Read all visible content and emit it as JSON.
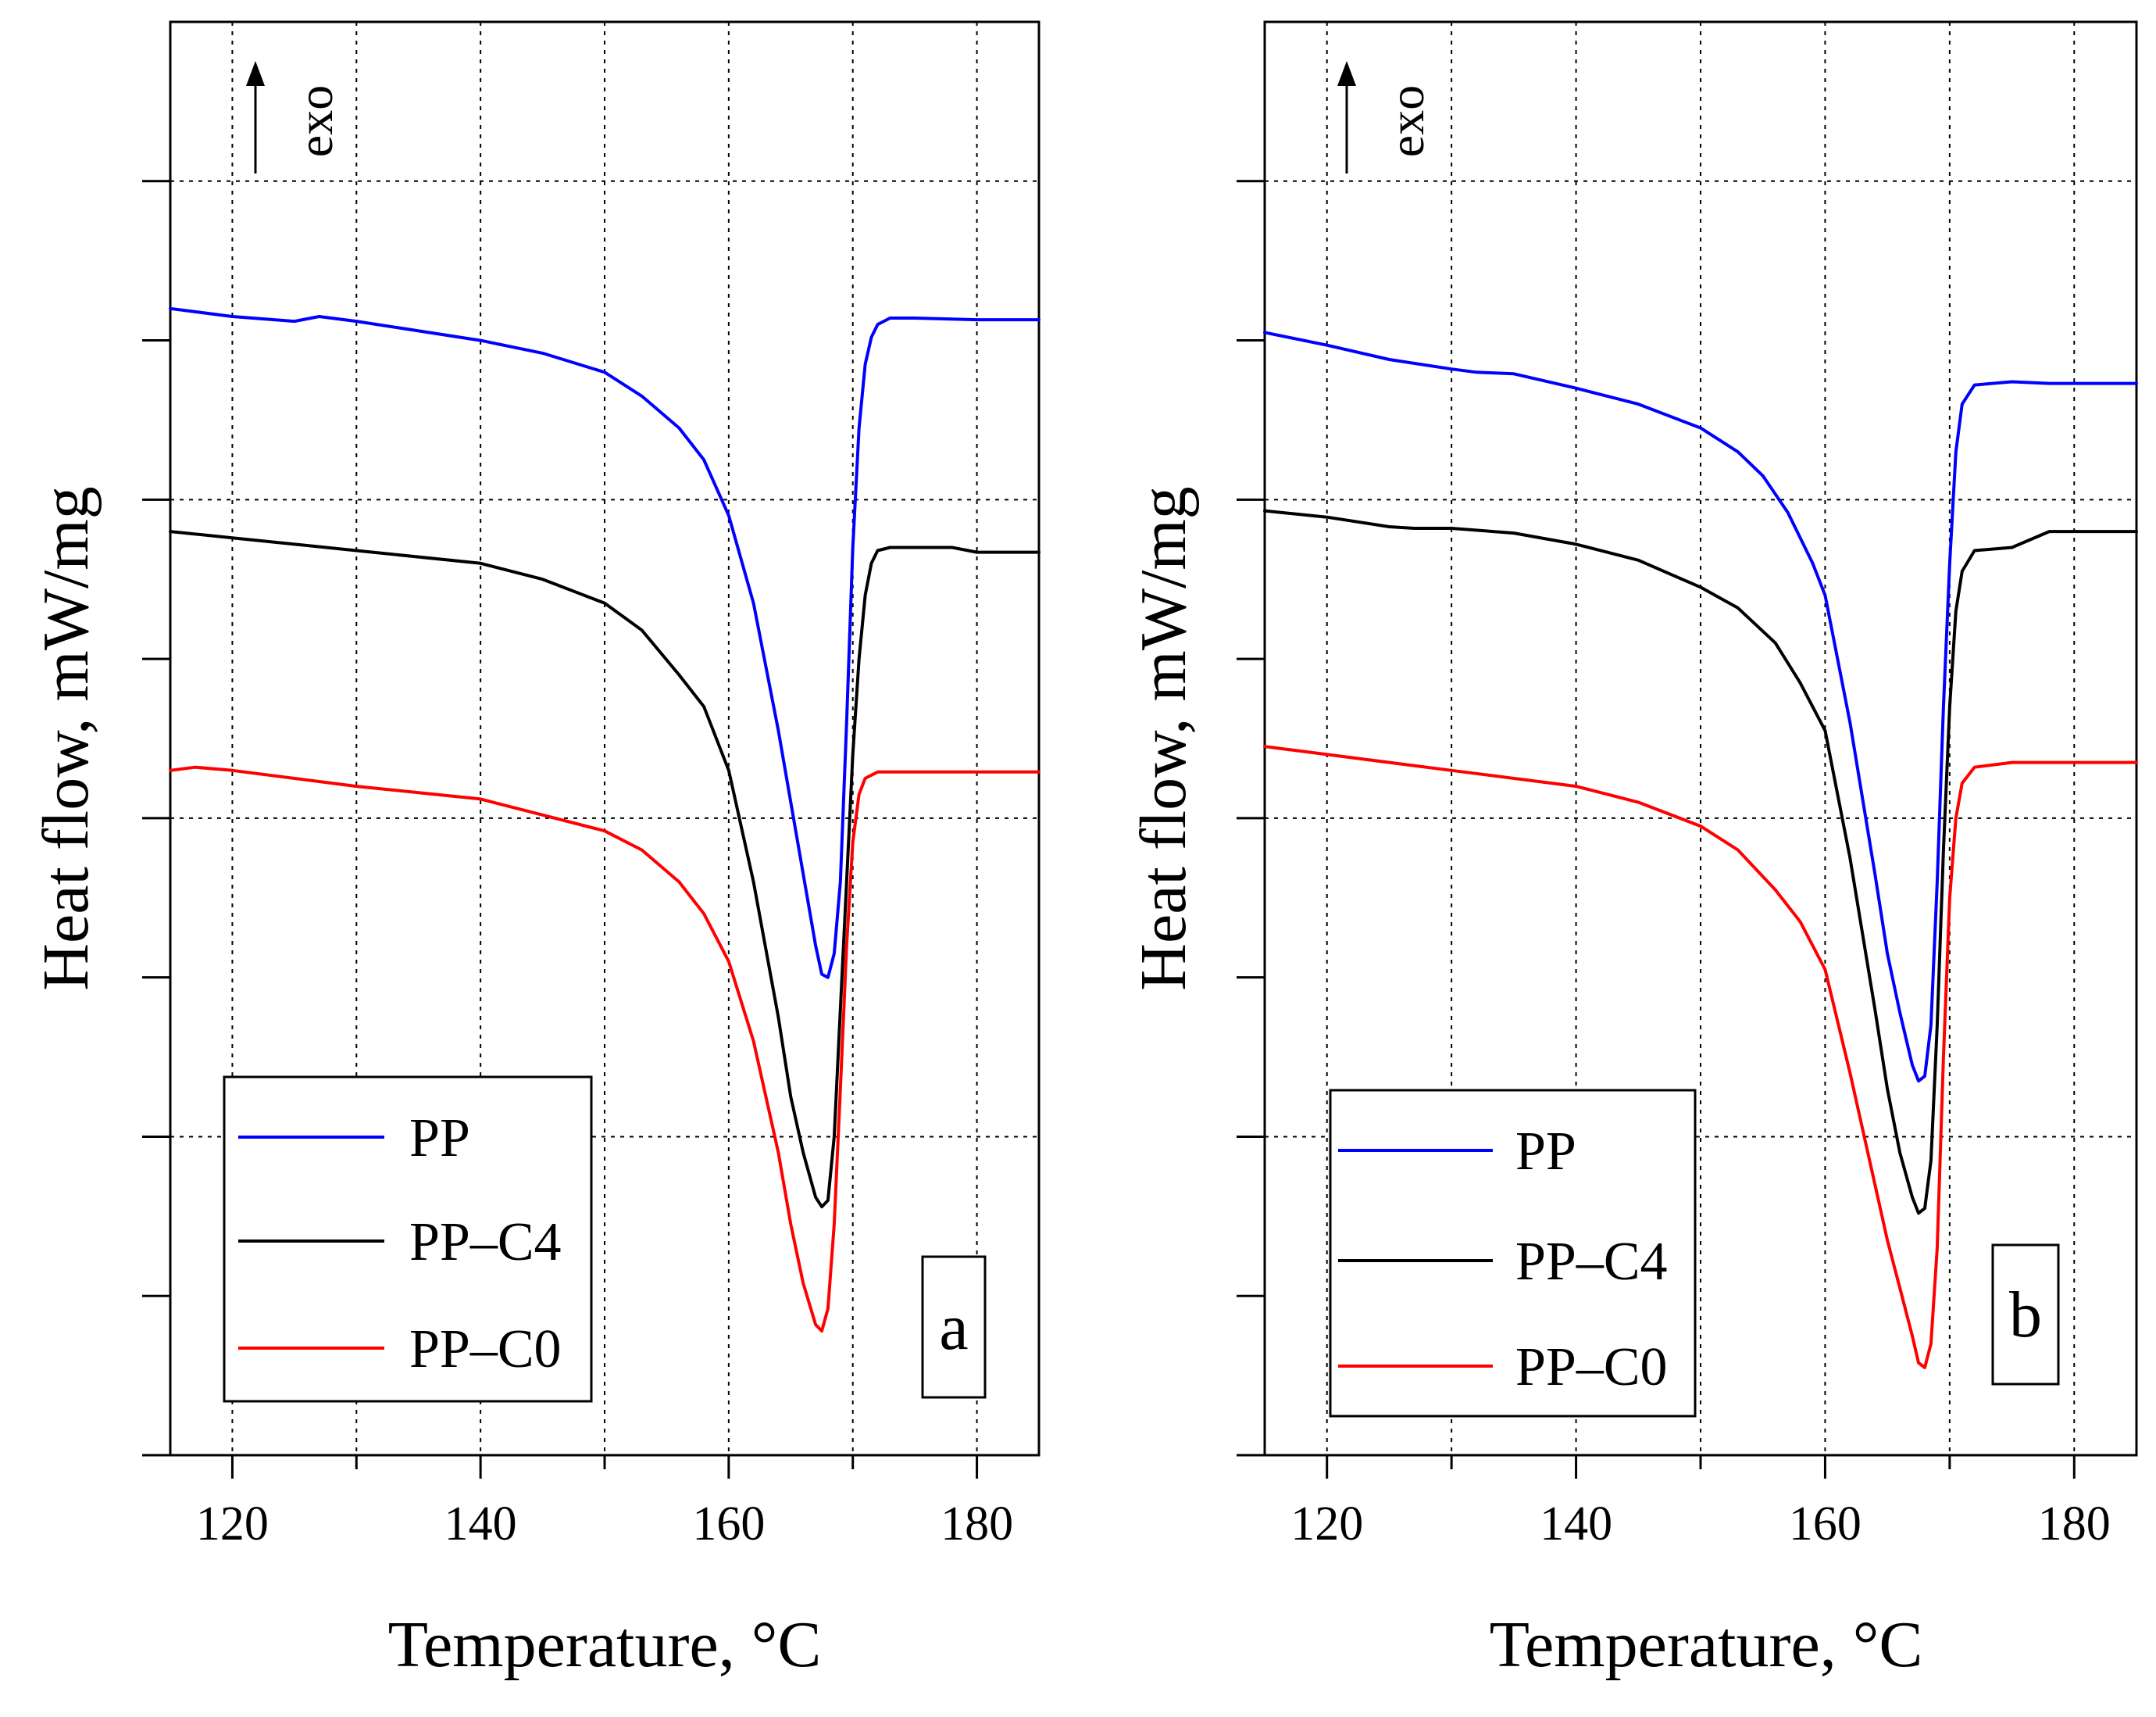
{
  "chart_data": [
    {
      "type": "line",
      "panel_label": "a",
      "xlabel": "Temperature, °C",
      "ylabel": "Heat flow, mW/mg",
      "xlim": [
        115,
        185
      ],
      "ylim": [
        0,
        9
      ],
      "x_ticks": [
        120,
        140,
        160,
        180
      ],
      "x_minor_ticks": [
        130,
        150,
        170
      ],
      "y_ticks": [
        1,
        2,
        3,
        4,
        5,
        6,
        7,
        8
      ],
      "y_tick_labels_shown": false,
      "grid": true,
      "exo_label": "exo",
      "legend": [
        "PP",
        "PP–C4",
        "PP–C0"
      ],
      "legend_position": "lower-left",
      "series": [
        {
          "name": "PP",
          "color": "#0000ff",
          "x": [
            115,
            120,
            125,
            127,
            130,
            140,
            145,
            150,
            153,
            156,
            158,
            160,
            162,
            164,
            165,
            166,
            167,
            167.5,
            168,
            168.5,
            169,
            169.5,
            170,
            170.5,
            171,
            171.5,
            172,
            173,
            175,
            180,
            185
          ],
          "y": [
            7.2,
            7.15,
            7.12,
            7.15,
            7.12,
            7.0,
            6.92,
            6.8,
            6.65,
            6.45,
            6.25,
            5.9,
            5.35,
            4.55,
            4.1,
            3.65,
            3.2,
            3.02,
            3.0,
            3.15,
            3.6,
            4.6,
            5.7,
            6.45,
            6.85,
            7.02,
            7.1,
            7.14,
            7.14,
            7.13,
            7.13
          ]
        },
        {
          "name": "PP–C4",
          "color": "#000000",
          "x": [
            115,
            120,
            130,
            140,
            145,
            150,
            153,
            156,
            158,
            160,
            162,
            164,
            165,
            166,
            167,
            167.5,
            168,
            168.5,
            169,
            169.5,
            170,
            170.5,
            171,
            171.5,
            172,
            173,
            178,
            180,
            185
          ],
          "y": [
            5.8,
            5.76,
            5.68,
            5.6,
            5.5,
            5.35,
            5.18,
            4.9,
            4.7,
            4.3,
            3.6,
            2.75,
            2.25,
            1.9,
            1.62,
            1.56,
            1.6,
            2.0,
            2.8,
            3.6,
            4.4,
            5.0,
            5.4,
            5.6,
            5.68,
            5.7,
            5.7,
            5.67,
            5.67
          ]
        },
        {
          "name": "PP–C0",
          "color": "#ff0000",
          "x": [
            115,
            117,
            120,
            130,
            140,
            145,
            150,
            153,
            156,
            158,
            160,
            162,
            164,
            165,
            166,
            167,
            167.5,
            168,
            168.5,
            169,
            169.5,
            170,
            170.5,
            171,
            172,
            175,
            180,
            185
          ],
          "y": [
            4.3,
            4.32,
            4.3,
            4.2,
            4.12,
            4.02,
            3.92,
            3.8,
            3.6,
            3.4,
            3.1,
            2.6,
            1.9,
            1.45,
            1.08,
            0.82,
            0.78,
            0.92,
            1.45,
            2.3,
            3.2,
            3.85,
            4.15,
            4.25,
            4.29,
            4.29,
            4.29,
            4.29
          ]
        }
      ]
    },
    {
      "type": "line",
      "panel_label": "b",
      "xlabel": "Temperature, °C",
      "ylabel": "Heat flow, mW/mg",
      "xlim": [
        115,
        185
      ],
      "ylim": [
        0,
        9
      ],
      "x_ticks": [
        120,
        140,
        160,
        180
      ],
      "x_minor_ticks": [
        130,
        150,
        170
      ],
      "y_ticks": [
        1,
        2,
        3,
        4,
        5,
        6,
        7,
        8
      ],
      "y_tick_labels_shown": false,
      "grid": true,
      "exo_label": "exo",
      "legend": [
        "PP",
        "PP–C4",
        "PP–C0"
      ],
      "legend_position": "lower-left",
      "series": [
        {
          "name": "PP",
          "color": "#0000ff",
          "x": [
            115,
            120,
            125,
            130,
            132,
            135,
            140,
            145,
            150,
            153,
            155,
            157,
            159,
            160,
            162,
            164,
            165,
            166,
            167,
            167.5,
            168,
            168.5,
            169,
            169.5,
            170,
            170.5,
            171,
            172,
            175,
            178,
            185
          ],
          "y": [
            7.05,
            6.97,
            6.88,
            6.82,
            6.8,
            6.79,
            6.7,
            6.6,
            6.45,
            6.3,
            6.15,
            5.92,
            5.6,
            5.4,
            4.6,
            3.65,
            3.15,
            2.78,
            2.45,
            2.35,
            2.38,
            2.7,
            3.6,
            4.7,
            5.6,
            6.3,
            6.6,
            6.72,
            6.74,
            6.73,
            6.73
          ]
        },
        {
          "name": "PP–C4",
          "color": "#000000",
          "x": [
            115,
            120,
            125,
            127,
            130,
            135,
            140,
            145,
            150,
            153,
            156,
            158,
            160,
            162,
            164,
            165,
            166,
            167,
            167.5,
            168,
            168.5,
            169,
            169.5,
            170,
            170.5,
            171,
            172,
            175,
            178,
            180,
            185
          ],
          "y": [
            5.93,
            5.89,
            5.83,
            5.82,
            5.82,
            5.79,
            5.72,
            5.62,
            5.45,
            5.32,
            5.1,
            4.85,
            4.55,
            3.75,
            2.8,
            2.3,
            1.9,
            1.62,
            1.52,
            1.55,
            1.85,
            2.7,
            3.8,
            4.7,
            5.3,
            5.55,
            5.68,
            5.7,
            5.8,
            5.8,
            5.8
          ]
        },
        {
          "name": "PP–C0",
          "color": "#ff0000",
          "x": [
            115,
            120,
            130,
            140,
            145,
            150,
            153,
            156,
            158,
            160,
            162,
            164,
            165,
            166,
            167,
            167.5,
            168,
            168.5,
            169,
            169.5,
            170,
            170.5,
            171,
            172,
            175,
            178,
            180,
            185
          ],
          "y": [
            4.45,
            4.4,
            4.3,
            4.2,
            4.1,
            3.95,
            3.8,
            3.55,
            3.35,
            3.05,
            2.4,
            1.7,
            1.35,
            1.05,
            0.75,
            0.58,
            0.55,
            0.7,
            1.3,
            2.5,
            3.5,
            4.0,
            4.22,
            4.32,
            4.35,
            4.35,
            4.35,
            4.35
          ]
        }
      ]
    }
  ]
}
